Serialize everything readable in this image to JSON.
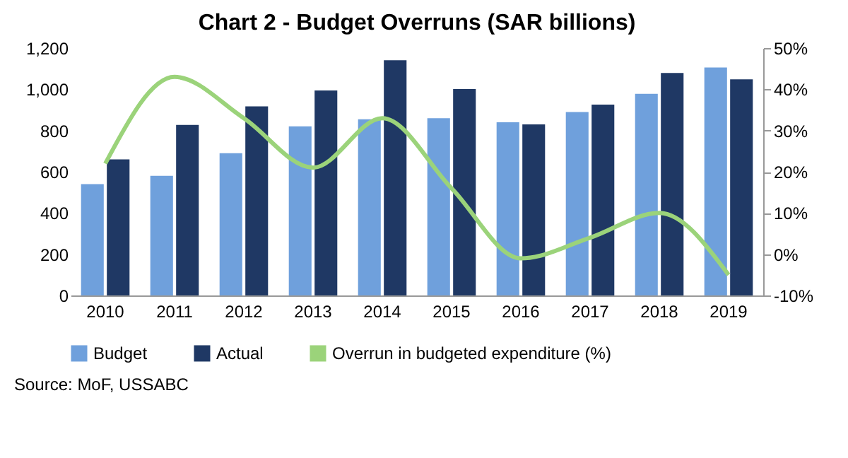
{
  "chart_data": {
    "type": "bar",
    "title": "Chart 2 - Budget Overruns (SAR billions)",
    "categories": [
      "2010",
      "2011",
      "2012",
      "2013",
      "2014",
      "2015",
      "2016",
      "2017",
      "2018",
      "2019"
    ],
    "series": [
      {
        "name": "Budget",
        "color": "#6fa0dc",
        "values": [
          540,
          580,
          690,
          820,
          855,
          860,
          840,
          890,
          978,
          1106
        ]
      },
      {
        "name": "Actual",
        "color": "#1f3864",
        "values": [
          660,
          827,
          917,
          994,
          1141,
          1001,
          830,
          926,
          1079,
          1048
        ]
      },
      {
        "name": "Overrun in budgeted expenditure (%)",
        "type": "line",
        "axis": "y2",
        "color": "#9bd37a",
        "values": [
          22,
          43,
          33,
          21,
          33,
          16,
          -1,
          4,
          10,
          -5
        ]
      }
    ],
    "ylim": [
      0,
      1200
    ],
    "yticks": [
      0,
      200,
      400,
      600,
      800,
      {
        "value": 1000,
        "label": "1,000"
      },
      {
        "value": 1200,
        "label": "1,200"
      }
    ],
    "y2lim": [
      -10,
      50
    ],
    "y2ticks": [
      {
        "value": -10,
        "label": "-10%"
      },
      {
        "value": 0,
        "label": "0%"
      },
      {
        "value": 10,
        "label": "10%"
      },
      {
        "value": 20,
        "label": "20%"
      },
      {
        "value": 30,
        "label": "30%"
      },
      {
        "value": 40,
        "label": "40%"
      },
      {
        "value": 50,
        "label": "50%"
      }
    ],
    "grid": false,
    "legend": "bottom",
    "annotations": [
      "Source: MoF, USSABC"
    ]
  }
}
